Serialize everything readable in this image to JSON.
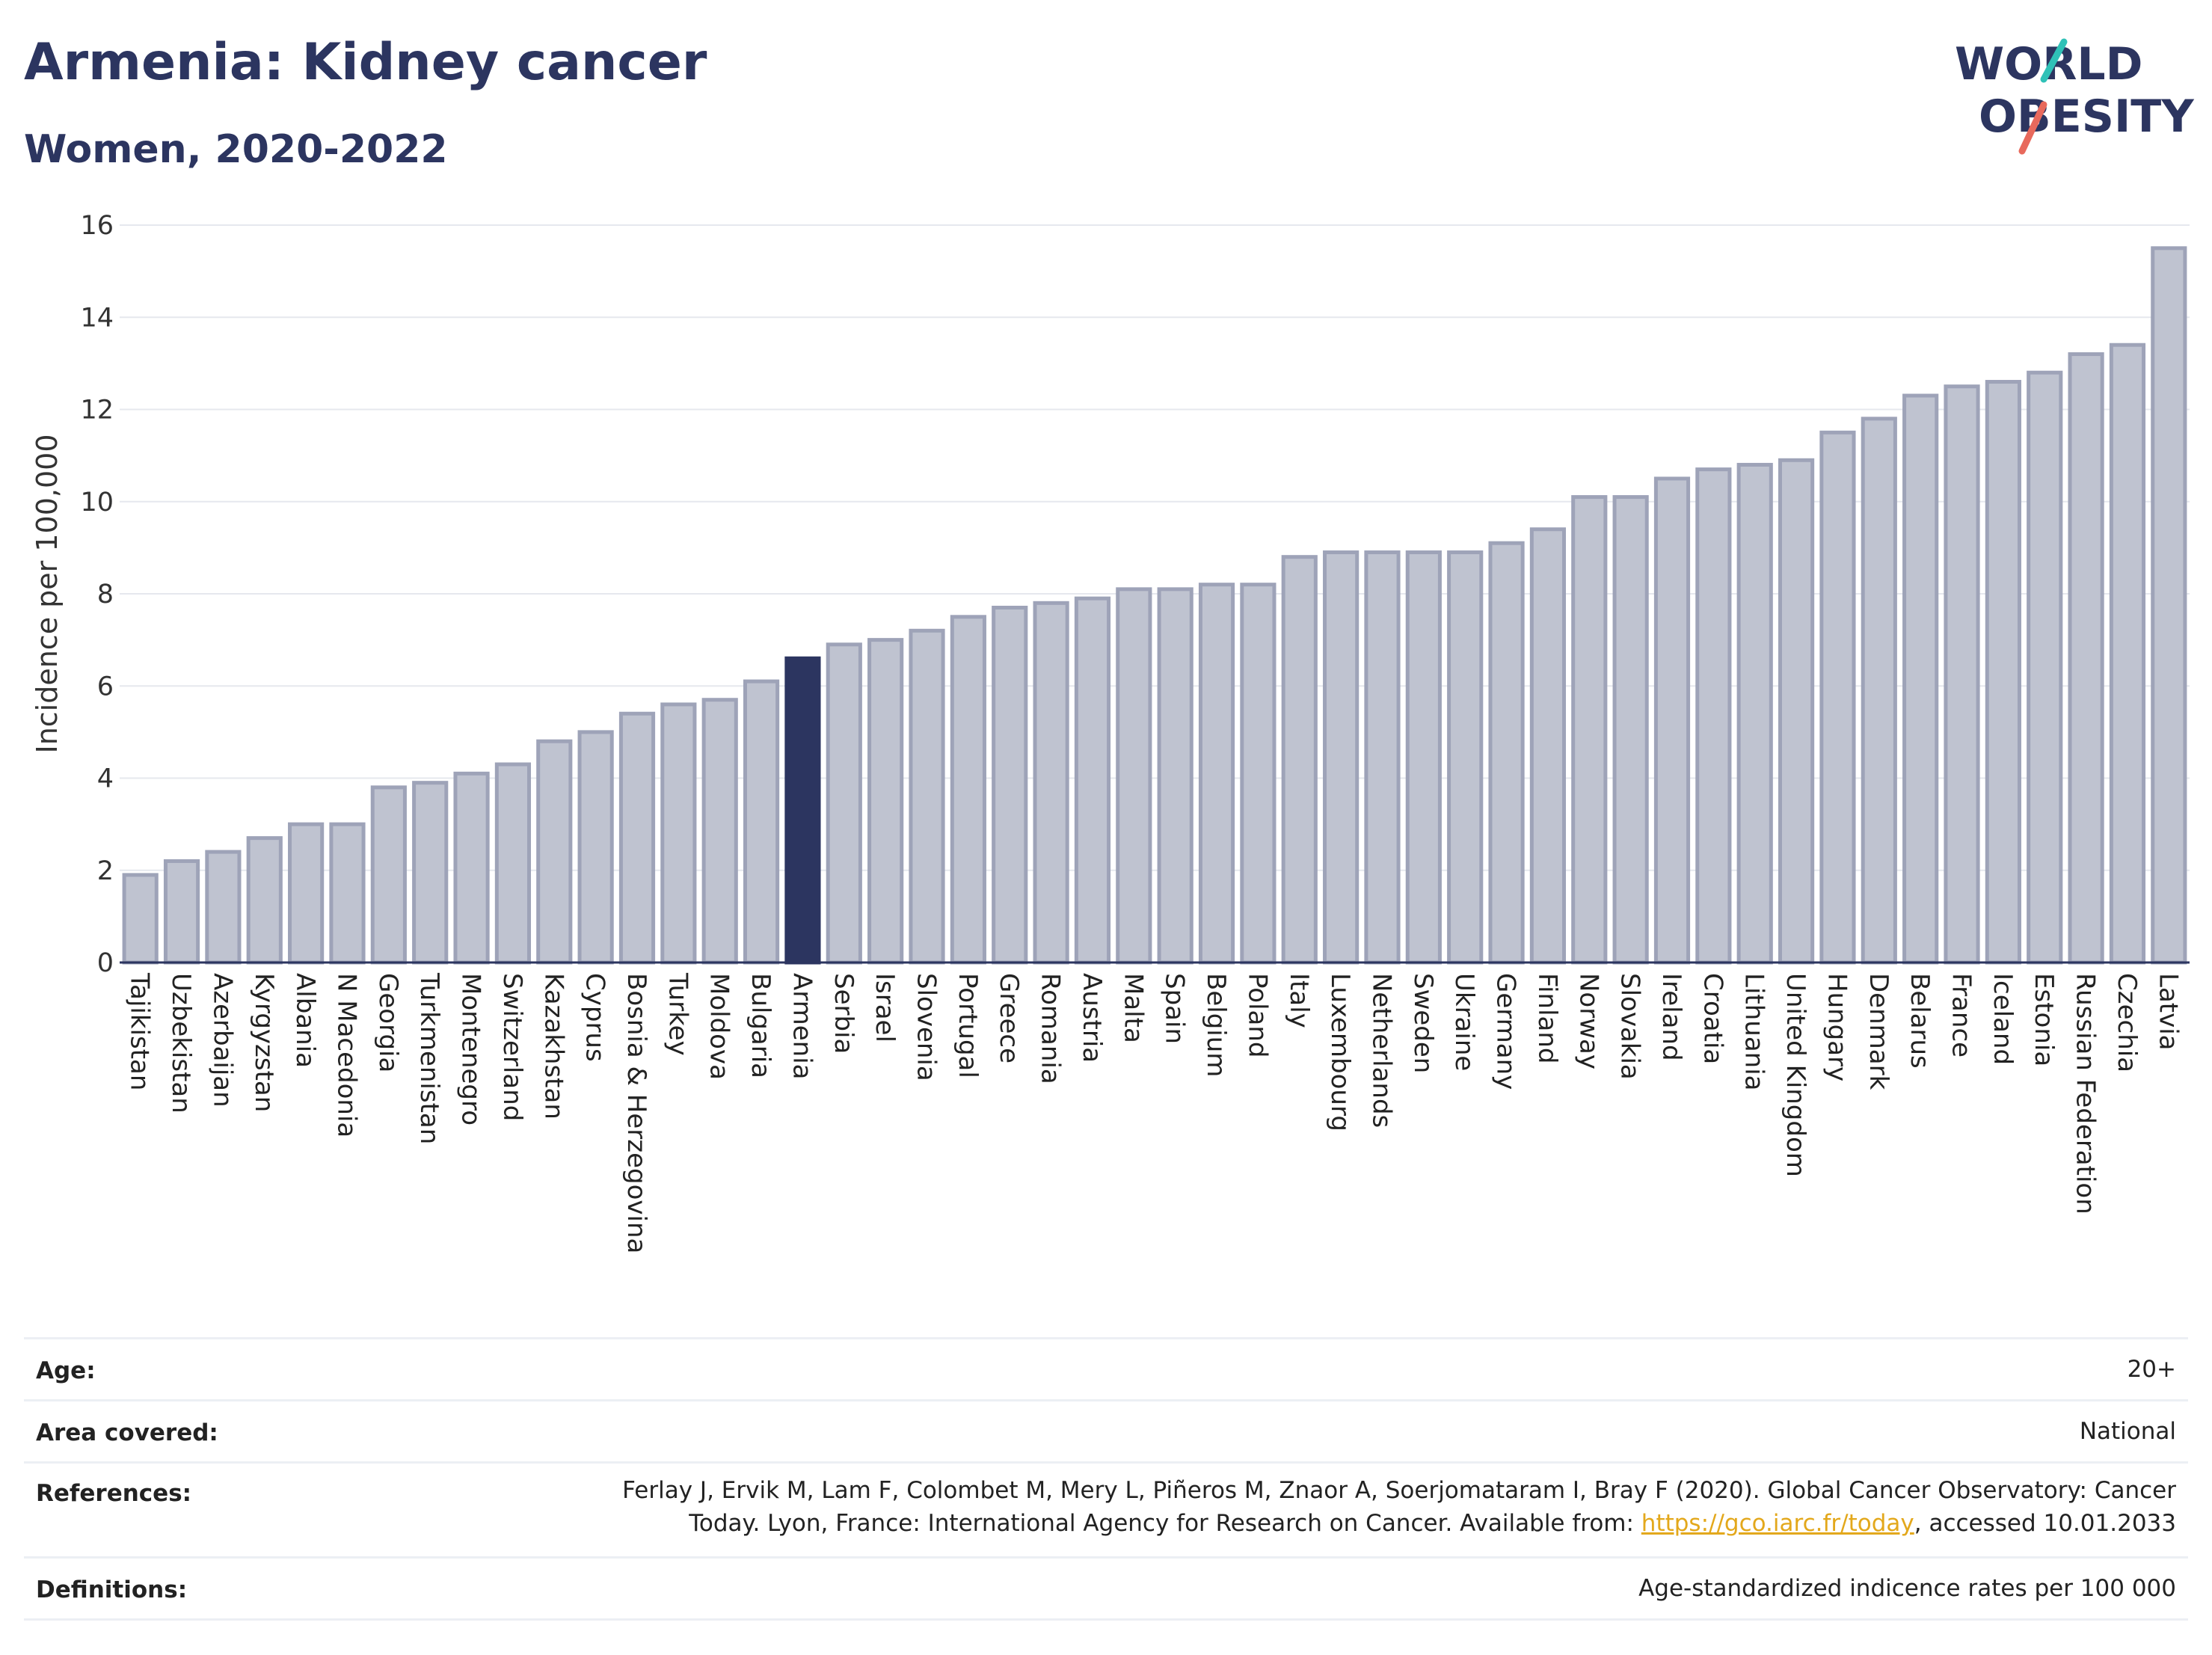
{
  "header": {
    "title": "Armenia: Kidney cancer",
    "subtitle": "Women, 2020-2022"
  },
  "logo": {
    "line1": "WORLD",
    "line2": "OBESITY"
  },
  "colors": {
    "highlight": "#2c3560",
    "bar_fill": "#bfc3d0",
    "bar_stroke": "#9ea3b8",
    "text": "#2c3560",
    "logo_teal": "#2fc1b7",
    "logo_coral": "#e8695c",
    "link": "#e3a81c"
  },
  "chart_data": {
    "type": "bar",
    "ylabel": "Incidence per 100,000",
    "xlabel": "",
    "ylim": [
      0,
      16
    ],
    "yticks": [
      0,
      2,
      4,
      6,
      8,
      10,
      12,
      14,
      16
    ],
    "grid": true,
    "highlight": "Armenia",
    "categories": [
      "Tajikistan",
      "Uzbekistan",
      "Azerbaijan",
      "Kyrgyzstan",
      "Albania",
      "N Macedonia",
      "Georgia",
      "Turkmenistan",
      "Montenegro",
      "Switzerland",
      "Kazakhstan",
      "Cyprus",
      "Bosnia & Herzegovina",
      "Turkey",
      "Moldova",
      "Bulgaria",
      "Armenia",
      "Serbia",
      "Israel",
      "Slovenia",
      "Portugal",
      "Greece",
      "Romania",
      "Austria",
      "Malta",
      "Spain",
      "Belgium",
      "Poland",
      "Italy",
      "Luxembourg",
      "Netherlands",
      "Sweden",
      "Ukraine",
      "Germany",
      "Finland",
      "Norway",
      "Slovakia",
      "Ireland",
      "Croatia",
      "Lithuania",
      "United Kingdom",
      "Hungary",
      "Denmark",
      "Belarus",
      "France",
      "Iceland",
      "Estonia",
      "Russian Federation",
      "Czechia",
      "Latvia"
    ],
    "values": [
      1.9,
      2.2,
      2.4,
      2.7,
      3.0,
      3.0,
      3.8,
      3.9,
      4.1,
      4.3,
      4.8,
      5.0,
      5.4,
      5.6,
      5.7,
      6.1,
      6.6,
      6.9,
      7.0,
      7.2,
      7.5,
      7.7,
      7.8,
      7.9,
      8.1,
      8.1,
      8.2,
      8.2,
      8.8,
      8.9,
      8.9,
      8.9,
      8.9,
      9.1,
      9.4,
      10.1,
      10.1,
      10.5,
      10.7,
      10.8,
      10.9,
      11.5,
      11.8,
      12.3,
      12.5,
      12.6,
      12.8,
      13.2,
      13.4,
      15.5
    ]
  },
  "info": {
    "age_label": "Age:",
    "age_value": "20+",
    "area_label": "Area covered:",
    "area_value": "National",
    "references_label": "References:",
    "references_text1": "Ferlay J, Ervik M, Lam F, Colombet M, Mery L, Piñeros M, Znaor A, Soerjomataram I, Bray F (2020). Global Cancer Observatory: Cancer",
    "references_text2": "Today. Lyon, France: International Agency for Research on Cancer. Available from: ",
    "references_link": "https://gco.iarc.fr/today",
    "references_text3": ", accessed 10.01.2033",
    "definitions_label": "Definitions:",
    "definitions_value": "Age-standardized indicence rates per 100 000"
  }
}
